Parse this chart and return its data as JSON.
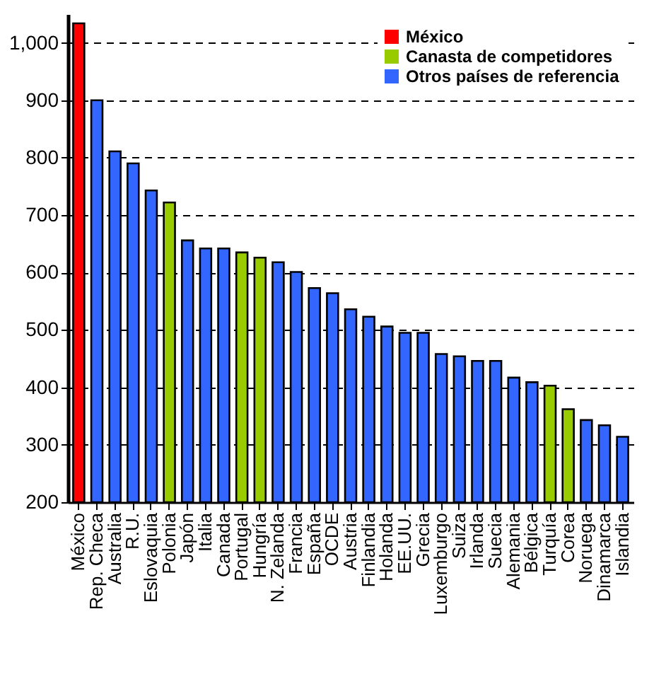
{
  "chart_data": {
    "type": "bar",
    "categories": [
      "México",
      "Rep. Checa",
      "Australia",
      "R.U.",
      "Eslovaquia",
      "Polonia",
      "Japón",
      "Italia",
      "Canada",
      "Portugal",
      "Hungría",
      "N. Zelanda",
      "Francia",
      "España",
      "OCDE",
      "Austria",
      "Finlandia",
      "Holanda",
      "EE.UU.",
      "Grecia",
      "Luxemburgo",
      "Suiza",
      "Irlanda",
      "Suecia",
      "Alemania",
      "Bélgica",
      "Turquía",
      "Corea",
      "Noruega",
      "Dinamarca",
      "Islandia"
    ],
    "series": [
      {
        "name": "México",
        "color": "#ff0000",
        "values": [
          1034,
          null,
          null,
          null,
          null,
          null,
          null,
          null,
          null,
          null,
          null,
          null,
          null,
          null,
          null,
          null,
          null,
          null,
          null,
          null,
          null,
          null,
          null,
          null,
          null,
          null,
          null,
          null,
          null,
          null,
          null
        ]
      },
      {
        "name": "Canasta de competidores",
        "color": "#99cc00",
        "values": [
          null,
          null,
          null,
          null,
          null,
          722,
          null,
          null,
          null,
          635,
          626,
          null,
          null,
          null,
          null,
          null,
          null,
          null,
          null,
          null,
          null,
          null,
          null,
          null,
          null,
          null,
          403,
          362,
          null,
          null,
          null
        ]
      },
      {
        "name": "Otros países de referencia",
        "color": "#3366ff",
        "values": [
          null,
          900,
          811,
          790,
          743,
          null,
          656,
          642,
          642,
          null,
          null,
          618,
          601,
          573,
          564,
          536,
          523,
          506,
          495,
          495,
          458,
          454,
          446,
          446,
          417,
          409,
          null,
          null,
          343,
          334,
          314
        ]
      }
    ],
    "ylim": [
      200,
      1050
    ],
    "yticks": [
      200,
      300,
      400,
      500,
      600,
      700,
      800,
      900,
      {
        "value": 1000,
        "label": "1,000"
      }
    ],
    "grid": "y",
    "legend": "top right"
  }
}
